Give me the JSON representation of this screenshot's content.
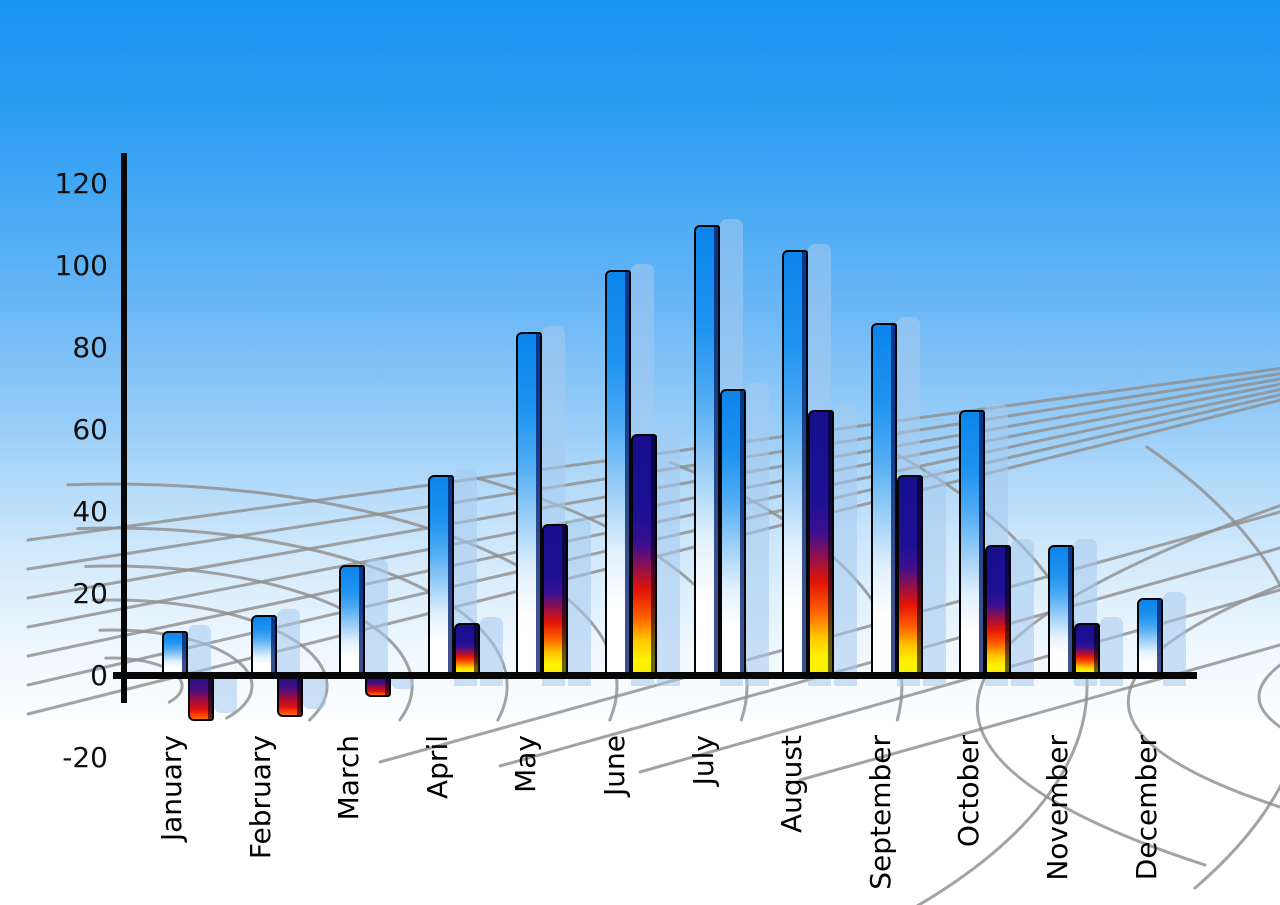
{
  "chart_data": {
    "type": "bar",
    "title": "",
    "xlabel": "",
    "ylabel": "",
    "categories": [
      "January",
      "February",
      "March",
      "April",
      "May",
      "June",
      "July",
      "August",
      "September",
      "October",
      "November",
      "December"
    ],
    "series": [
      {
        "name": "primary-blue-bars",
        "values": [
          11,
          15,
          27,
          49,
          84,
          99,
          110,
          104,
          86,
          65,
          32,
          19
        ]
      },
      {
        "name": "secondary-flame-bars",
        "values": [
          -11,
          -10,
          -5,
          13,
          37,
          59,
          70,
          65,
          49,
          32,
          13,
          null
        ]
      }
    ],
    "y_ticks": [
      120,
      100,
      80,
      60,
      40,
      20,
      0,
      -20
    ],
    "ylim": [
      -20,
      120
    ],
    "grid": true,
    "legend": "none",
    "annotations": [
      "July secondary bar is drawn with the blue gradient instead of flame colors",
      "December has no secondary bar",
      "each bar casts a pale translucent copy offset to the right",
      "curved gray perspective grid behind bars"
    ]
  },
  "colors": {
    "background_top": "#1794f1",
    "background_bottom": "#ffffff",
    "bar_blue_top": "#0b85ec",
    "bar_blue_bottom": "#ffffff",
    "flame_navy": "#1c1094",
    "flame_red": "#e31405",
    "flame_yellow": "#f8ef00",
    "shadow_bar": "#a5c9ef",
    "grid_line": "#8f8f8f",
    "axis": "#070707",
    "text": "#000000"
  }
}
